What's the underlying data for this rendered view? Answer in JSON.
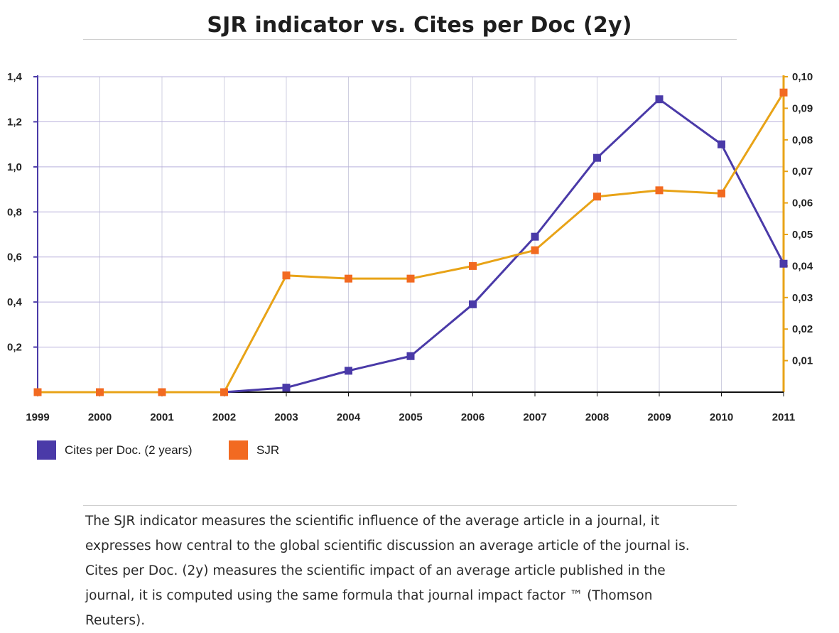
{
  "chart_data": {
    "type": "line",
    "title": "SJR indicator vs. Cites per Doc (2y)",
    "categories": [
      "1999",
      "2000",
      "2001",
      "2002",
      "2003",
      "2004",
      "2005",
      "2006",
      "2007",
      "2008",
      "2009",
      "2010",
      "2011"
    ],
    "series": [
      {
        "name": "Cites per Doc. (2 years)",
        "axis": "left",
        "color": "#4a3aa8",
        "values": [
          0,
          0,
          0,
          0,
          0.02,
          0.095,
          0.16,
          0.39,
          0.69,
          1.04,
          1.3,
          1.1,
          0.57
        ]
      },
      {
        "name": "SJR",
        "axis": "right",
        "color": "#e8a317",
        "marker_color": "#f26a21",
        "values": [
          0,
          0,
          0,
          0,
          0.037,
          0.036,
          0.036,
          0.04,
          0.045,
          0.062,
          0.064,
          0.063,
          0.095
        ]
      }
    ],
    "y_left": {
      "range": [
        0,
        1.4
      ],
      "ticks": [
        0.2,
        0.4,
        0.6,
        0.8,
        1.0,
        1.2,
        1.4
      ],
      "tick_labels": [
        "0,2",
        "0,4",
        "0,6",
        "0,8",
        "1,0",
        "1,2",
        "1,4"
      ],
      "color": "#4a3aa8"
    },
    "y_right": {
      "range": [
        0,
        0.1
      ],
      "ticks": [
        0.01,
        0.02,
        0.03,
        0.04,
        0.05,
        0.06,
        0.07,
        0.08,
        0.09,
        0.1
      ],
      "tick_labels": [
        "0,01",
        "0,02",
        "0,03",
        "0,04",
        "0,05",
        "0,06",
        "0,07",
        "0,08",
        "0,09",
        "0,10"
      ],
      "color": "#e8a317"
    },
    "grid": true,
    "legend_position": "bottom-left"
  },
  "description": [
    "The SJR indicator measures the scientific influence of the average article in a journal, it",
    "expresses how central to the global scientific discussion an average article of the journal is.",
    "Cites per Doc. (2y) measures the scientific impact of an average article published in the",
    "journal, it is computed using the same formula that journal impact factor ™ (Thomson",
    "Reuters)."
  ]
}
